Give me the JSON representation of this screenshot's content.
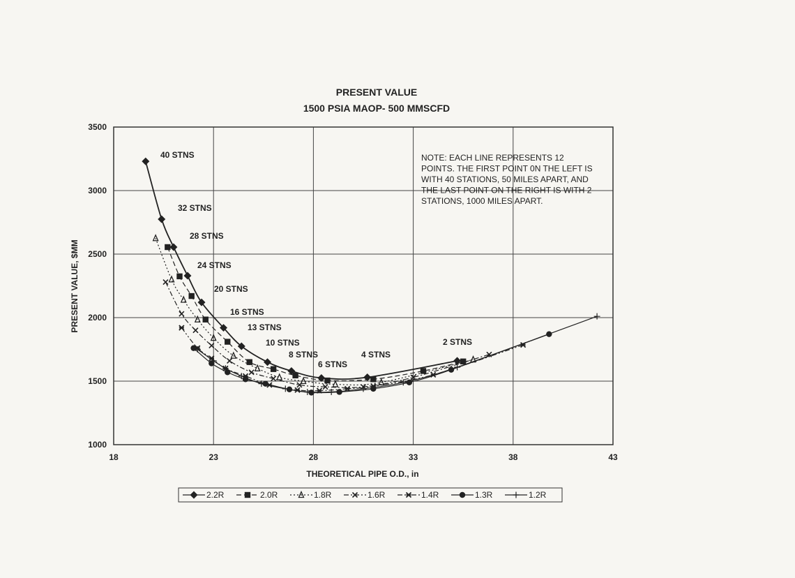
{
  "chart_data": {
    "type": "line",
    "title": "PRESENT VALUE",
    "subtitle": "1500 PSIA MAOP- 500 MMSCFD",
    "xlabel": "THEORETICAL PIPE O.D., in",
    "ylabel": "PRESENT VALUE, $MM",
    "xlim": [
      18,
      43
    ],
    "ylim": [
      1000,
      3500
    ],
    "xticks": [
      "18",
      "23",
      "28",
      "33",
      "38",
      "43"
    ],
    "yticks": [
      "1000",
      "1500",
      "2000",
      "2500",
      "3000",
      "3500"
    ],
    "grid": true,
    "legend_position": "bottom",
    "note": [
      "NOTE: EACH LINE REPRESENTS 12",
      "POINTS. THE FIRST POINT 0N THE LEFT IS",
      "WITH 40 STATIONS, 50 MILES APART, AND",
      "THE LAST POINT ON THE RIGHT IS WITH 2",
      "STATIONS, 1000 MILES APART."
    ],
    "annotations": [
      "40 STNS",
      "32 STNS",
      "28 STNS",
      "24 STNS",
      "20 STNS",
      "16 STNS",
      "13 STNS",
      "10 STNS",
      "8 STNS",
      "6 STNS",
      "4 STNS",
      "2 STNS"
    ],
    "series": [
      {
        "name": "2.2R",
        "marker": "diamond",
        "dash": "solid",
        "x": [
          19.6,
          20.4,
          21.0,
          21.7,
          22.4,
          23.5,
          24.4,
          25.7,
          26.9,
          28.4,
          30.7,
          35.2
        ],
        "y": [
          3230,
          2775,
          2555,
          2330,
          2120,
          1920,
          1775,
          1650,
          1580,
          1525,
          1530,
          1660
        ]
      },
      {
        "name": "2.0R",
        "marker": "square",
        "dash": "dashed",
        "x": [
          20.7,
          21.3,
          21.9,
          22.6,
          23.7,
          24.8,
          26.0,
          27.1,
          28.7,
          31.0,
          33.5,
          35.5
        ],
        "y": [
          2555,
          2325,
          2170,
          1985,
          1810,
          1650,
          1595,
          1545,
          1505,
          1515,
          1580,
          1655
        ]
      },
      {
        "name": "1.8R",
        "marker": "triangle",
        "dash": "dotted",
        "x": [
          20.1,
          20.9,
          21.5,
          22.2,
          23.0,
          24.0,
          25.2,
          26.3,
          27.5,
          29.1,
          31.4,
          36.0
        ],
        "y": [
          2625,
          2300,
          2140,
          1985,
          1840,
          1700,
          1600,
          1530,
          1500,
          1475,
          1490,
          1670
        ]
      },
      {
        "name": "1.6R",
        "marker": "x",
        "dash": "dashdot",
        "x": [
          20.6,
          21.4,
          22.1,
          22.9,
          23.8,
          24.9,
          26.0,
          27.3,
          28.6,
          30.5,
          33.0,
          36.8
        ],
        "y": [
          2280,
          2030,
          1900,
          1780,
          1660,
          1570,
          1520,
          1470,
          1455,
          1455,
          1530,
          1710
        ]
      },
      {
        "name": "1.4R",
        "marker": "asterisk",
        "dash": "dashdotdot",
        "x": [
          21.4,
          22.2,
          22.9,
          23.6,
          24.6,
          25.8,
          27.2,
          28.3,
          29.7,
          31.0,
          34.0,
          38.5
        ],
        "y": [
          1920,
          1760,
          1680,
          1600,
          1540,
          1470,
          1430,
          1425,
          1440,
          1460,
          1550,
          1785
        ]
      },
      {
        "name": "1.3R",
        "marker": "circle",
        "dash": "solid",
        "x": [
          22.0,
          22.9,
          23.7,
          24.6,
          25.6,
          26.8,
          27.9,
          29.3,
          31.0,
          32.8,
          34.9,
          39.8
        ],
        "y": [
          1760,
          1640,
          1570,
          1515,
          1480,
          1435,
          1410,
          1415,
          1440,
          1490,
          1590,
          1870
        ]
      },
      {
        "name": "1.2R",
        "marker": "plus",
        "dash": "solid",
        "x": [
          22.2,
          23.0,
          23.6,
          24.4,
          25.4,
          26.6,
          27.7,
          28.9,
          30.5,
          32.5,
          35.2,
          42.2
        ],
        "y": [
          1750,
          1660,
          1600,
          1540,
          1480,
          1440,
          1415,
          1415,
          1440,
          1490,
          1610,
          2010
        ]
      }
    ]
  }
}
